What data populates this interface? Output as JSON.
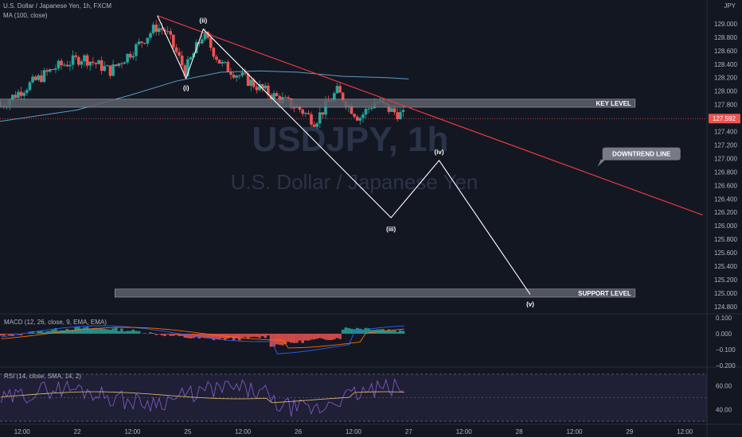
{
  "header": {
    "symbol_line": "U.S. Dollar / Japanese Yen, 1h, FXCM",
    "ma_line": "MA (100, close)",
    "currency": "JPY"
  },
  "watermark": {
    "ticker": "USDJPY, 1h",
    "name": "U.S. Dollar / Japanese Yen"
  },
  "chart_data": {
    "type": "line",
    "title": "",
    "price_axis": {
      "range": [
        124.7,
        129.15
      ],
      "ticks": [
        "129.000",
        "128.800",
        "128.600",
        "128.400",
        "128.200",
        "128.000",
        "127.800",
        "127.600",
        "127.400",
        "127.200",
        "127.000",
        "126.800",
        "126.600",
        "126.400",
        "126.200",
        "126.000",
        "125.800",
        "125.600",
        "125.400",
        "125.200",
        "125.000",
        "124.800"
      ],
      "last_price": "127.592"
    },
    "time_axis": {
      "ticks": [
        "12:00",
        "22",
        "12:00",
        "25",
        "12:00",
        "26",
        "12:00",
        "27",
        "12:00",
        "28",
        "12:00",
        "29",
        "12:00"
      ],
      "range": [
        -0.4,
        12.4
      ]
    },
    "annotations": {
      "key_level": {
        "label": "KEY LEVEL",
        "price_low": 127.76,
        "price_high": 127.88,
        "t_start": -0.4,
        "t_end": 11.1
      },
      "support_level": {
        "label": "SUPPORT LEVEL",
        "price_low": 124.94,
        "price_high": 125.06,
        "t_start": 1.68,
        "t_end": 11.1
      },
      "downtrend_line": {
        "label": "DOWNTREND LINE",
        "t": [
          2.45,
          12.32
        ],
        "price": [
          129.12,
          126.16
        ]
      },
      "wave_count": {
        "labels": [
          "(i)",
          "(ii)",
          "(iii)",
          "(iv)",
          "(v)"
        ],
        "t": [
          2.45,
          2.97,
          3.28,
          6.68,
          7.55,
          9.2
        ],
        "price": [
          129.12,
          128.19,
          128.92,
          126.12,
          126.97,
          124.98
        ]
      }
    },
    "ma_note": "MA(100) line shown in light blue",
    "indicators": {
      "macd": {
        "label": "MACD (12, 26, close, 9, EMA, EMA)",
        "ticks": [
          "0.100",
          "0.000",
          "−0.100",
          "−0.200"
        ],
        "range": [
          -0.2,
          0.12
        ]
      },
      "rsi": {
        "label": "RSI (14, close, SMA, 14, 2)",
        "ticks": [
          "60.00",
          "40.00"
        ],
        "range": [
          28,
          74
        ],
        "bands": [
          70,
          30
        ]
      }
    },
    "colors": {
      "up": "#26a69a",
      "down": "#ef5350",
      "ma": "#5b9cc4",
      "trend": "#e8393f",
      "wave": "#ffffff",
      "level_fill": "#5d606b",
      "bg": "#131722"
    }
  }
}
